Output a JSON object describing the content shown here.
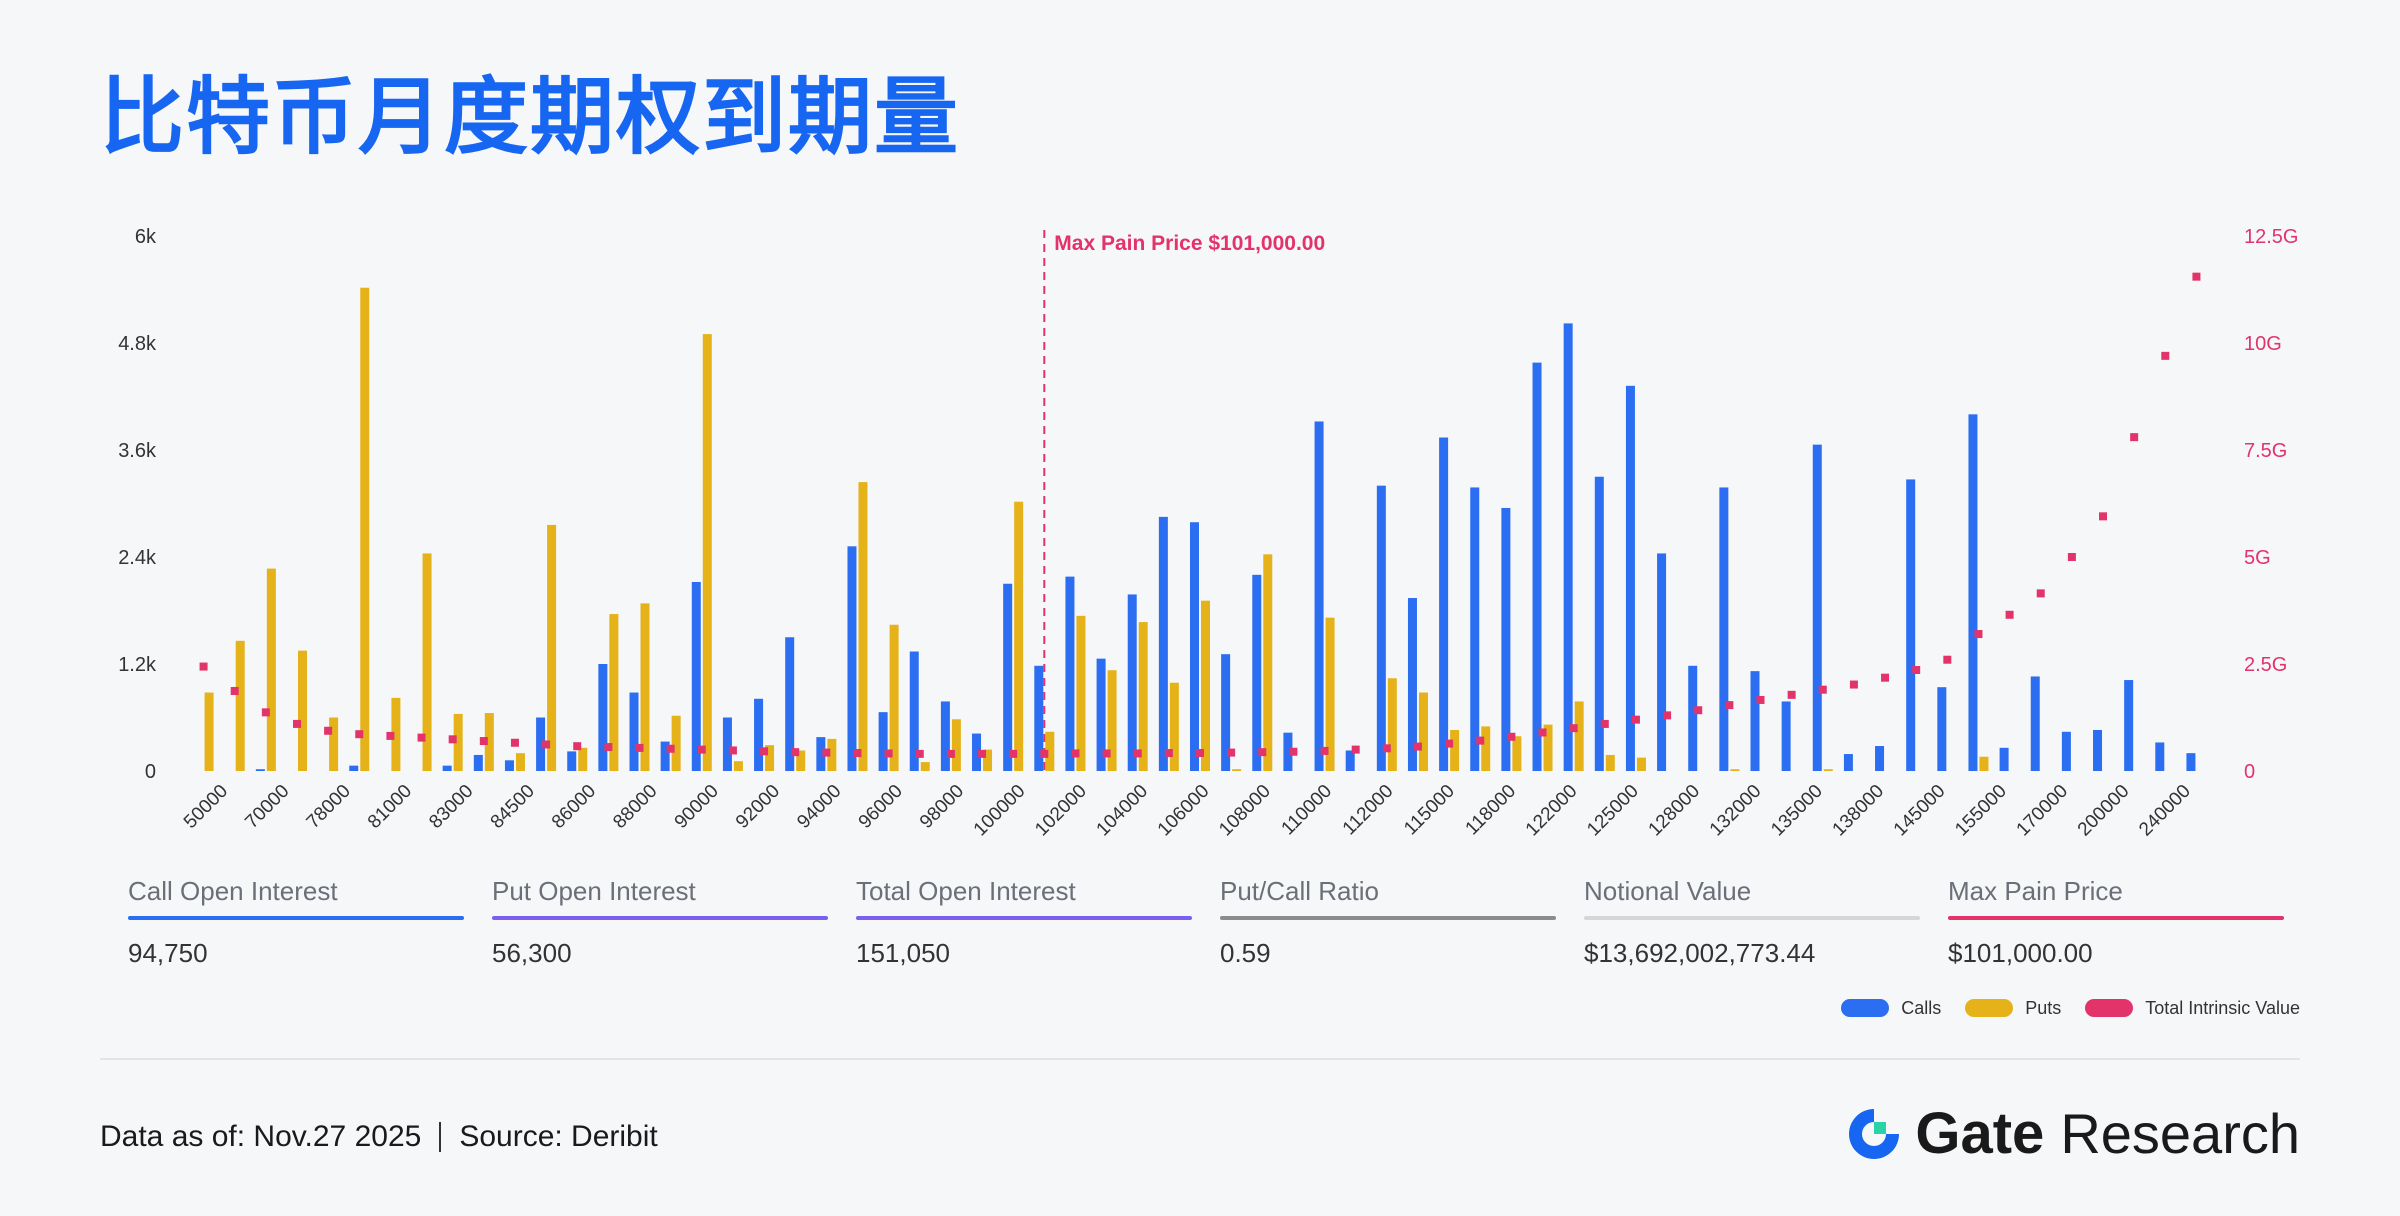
{
  "title": "比特币月度期权到期量",
  "colors": {
    "calls": "#2b6ef2",
    "puts": "#e5b21a",
    "intrinsic": "#e2336b",
    "title": "#1766f2",
    "maxpain": "#e2336b",
    "ratio": "#8a8c90",
    "notional": "#d4d6da",
    "put_oi": "#7b5ff0",
    "total_oi": "#7b5ff0"
  },
  "metrics": [
    {
      "label": "Call Open Interest",
      "value": "94,750"
    },
    {
      "label": "Put Open Interest",
      "value": "56,300"
    },
    {
      "label": "Total Open Interest",
      "value": "151,050"
    },
    {
      "label": "Put/Call Ratio",
      "value": "0.59"
    },
    {
      "label": "Notional Value",
      "value": "$13,692,002,773.44"
    },
    {
      "label": "Max Pain Price",
      "value": "$101,000.00"
    }
  ],
  "legend": {
    "calls": "Calls",
    "puts": "Puts",
    "intrinsic": "Total Intrinsic Value"
  },
  "footer": {
    "data_as_of": "Data as of: Nov.27 2025",
    "source": "Source: Deribit"
  },
  "brand": {
    "gate": "Gate",
    "research": "Research"
  },
  "chart_data": {
    "type": "bar",
    "categories": [
      "50000",
      "65000",
      "70000",
      "75000",
      "78000",
      "80000",
      "81000",
      "82000",
      "83000",
      "84000",
      "84500",
      "85000",
      "86000",
      "87000",
      "88000",
      "89000",
      "90000",
      "91000",
      "92000",
      "93000",
      "94000",
      "95000",
      "96000",
      "97000",
      "98000",
      "99000",
      "100000",
      "101000",
      "102000",
      "103000",
      "104000",
      "105000",
      "106000",
      "107000",
      "108000",
      "109000",
      "110000",
      "111000",
      "112000",
      "114000",
      "115000",
      "116000",
      "118000",
      "120000",
      "122000",
      "124000",
      "125000",
      "126000",
      "128000",
      "130000",
      "132000",
      "134000",
      "135000",
      "136000",
      "138000",
      "140000",
      "145000",
      "150000",
      "155000",
      "160000",
      "170000",
      "180000",
      "200000",
      "220000",
      "240000"
    ],
    "tick_labels": [
      "50000",
      "70000",
      "78000",
      "81000",
      "83000",
      "84500",
      "86000",
      "88000",
      "90000",
      "92000",
      "94000",
      "96000",
      "98000",
      "100000",
      "102000",
      "104000",
      "106000",
      "108000",
      "110000",
      "112000",
      "115000",
      "118000",
      "122000",
      "125000",
      "128000",
      "132000",
      "135000",
      "138000",
      "145000",
      "155000",
      "170000",
      "200000",
      "240000"
    ],
    "series": [
      {
        "name": "Calls",
        "axis": "left",
        "values": [
          0,
          0,
          20,
          0,
          0,
          60,
          0,
          0,
          60,
          180,
          120,
          600,
          220,
          1200,
          880,
          330,
          2120,
          600,
          810,
          1500,
          380,
          2520,
          660,
          1340,
          780,
          420,
          2100,
          1180,
          2180,
          1260,
          1980,
          2850,
          2790,
          1310,
          2200,
          430,
          3920,
          230,
          3200,
          1940,
          3740,
          3180,
          2950,
          4580,
          5020,
          3300,
          4320,
          2440,
          1180,
          3180,
          1120,
          780,
          3660,
          190,
          280,
          3270,
          940,
          4000,
          260,
          1060,
          440,
          460,
          1020,
          320,
          200
        ]
      },
      {
        "name": "Puts",
        "axis": "left",
        "values": [
          880,
          1460,
          2270,
          1350,
          600,
          5420,
          820,
          2440,
          640,
          650,
          200,
          2760,
          260,
          1760,
          1880,
          620,
          4900,
          110,
          290,
          230,
          360,
          3240,
          1640,
          100,
          580,
          240,
          3020,
          440,
          1740,
          1130,
          1670,
          990,
          1910,
          20,
          2430,
          0,
          1720,
          0,
          1040,
          880,
          460,
          500,
          390,
          520,
          780,
          180,
          150,
          0,
          0,
          20,
          0,
          0,
          20,
          0,
          0,
          0,
          0,
          160,
          0,
          0,
          0,
          0,
          0,
          0,
          0
        ]
      },
      {
        "name": "Total Intrinsic Value",
        "axis": "right",
        "values": [
          2.44,
          1.87,
          1.37,
          1.1,
          0.94,
          0.86,
          0.82,
          0.78,
          0.74,
          0.7,
          0.66,
          0.62,
          0.58,
          0.56,
          0.54,
          0.52,
          0.5,
          0.48,
          0.46,
          0.44,
          0.43,
          0.42,
          0.41,
          0.4,
          0.4,
          0.4,
          0.4,
          0.4,
          0.41,
          0.41,
          0.41,
          0.42,
          0.42,
          0.43,
          0.44,
          0.45,
          0.47,
          0.5,
          0.53,
          0.57,
          0.64,
          0.71,
          0.8,
          0.9,
          1.0,
          1.1,
          1.2,
          1.3,
          1.42,
          1.54,
          1.66,
          1.78,
          1.9,
          2.02,
          2.18,
          2.36,
          2.6,
          3.2,
          3.65,
          4.15,
          5.0,
          5.95,
          7.8,
          9.7,
          11.55
        ]
      }
    ],
    "left_axis": {
      "min": 0,
      "max": 6000,
      "ticks": [
        "0",
        "1.2k",
        "2.4k",
        "3.6k",
        "4.8k",
        "6k"
      ]
    },
    "right_axis": {
      "min": 0,
      "max": 12.5,
      "ticks": [
        "0",
        "2.5G",
        "5G",
        "7.5G",
        "10G",
        "12.5G"
      ]
    },
    "annotation": {
      "label": "Max Pain Price $101,000.00",
      "category": "101000"
    },
    "legend_position": "bottom-right",
    "grid": false
  }
}
